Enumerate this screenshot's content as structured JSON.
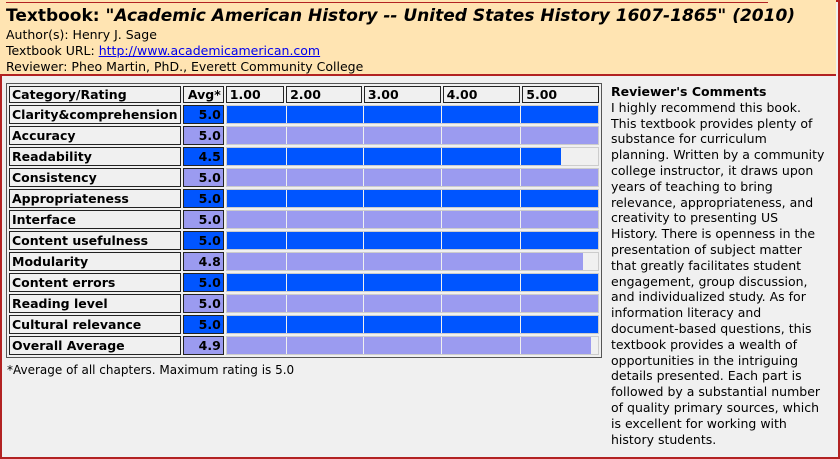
{
  "header": {
    "title_prefix": "Textbook: ",
    "title_book": "\"Academic American History -- United States History 1607-1865\" (2010)",
    "author_label": "Author(s): ",
    "author": "Henry J. Sage",
    "url_label": "Textbook URL: ",
    "url": "http://www.academicamerican.com",
    "reviewer_label": "Reviewer: ",
    "reviewer": "Pheo Martin, PhD., Everett Community College"
  },
  "table": {
    "col_category": "Category/Rating",
    "col_avg": "Avg*",
    "scale": [
      "1.00",
      "2.00",
      "3.00",
      "4.00",
      "5.00"
    ],
    "max": 5.0,
    "colors": {
      "dark": "#0055ff",
      "light": "#9b9bf0"
    },
    "rows": [
      {
        "label": "Clarity&comprehension",
        "avg": "5.0",
        "value": 5.0,
        "shade": "dark"
      },
      {
        "label": "Accuracy",
        "avg": "5.0",
        "value": 5.0,
        "shade": "light"
      },
      {
        "label": "Readability",
        "avg": "4.5",
        "value": 4.5,
        "shade": "dark"
      },
      {
        "label": "Consistency",
        "avg": "5.0",
        "value": 5.0,
        "shade": "light"
      },
      {
        "label": "Appropriateness",
        "avg": "5.0",
        "value": 5.0,
        "shade": "dark"
      },
      {
        "label": "Interface",
        "avg": "5.0",
        "value": 5.0,
        "shade": "light"
      },
      {
        "label": "Content usefulness",
        "avg": "5.0",
        "value": 5.0,
        "shade": "dark"
      },
      {
        "label": "Modularity",
        "avg": "4.8",
        "value": 4.8,
        "shade": "light"
      },
      {
        "label": "Content errors",
        "avg": "5.0",
        "value": 5.0,
        "shade": "dark"
      },
      {
        "label": "Reading level",
        "avg": "5.0",
        "value": 5.0,
        "shade": "light"
      },
      {
        "label": "Cultural relevance",
        "avg": "5.0",
        "value": 5.0,
        "shade": "dark"
      },
      {
        "label": "Overall Average",
        "avg": "4.9",
        "value": 4.9,
        "shade": "light"
      }
    ]
  },
  "footnote": "*Average of all chapters.  Maximum rating is 5.0",
  "comments": {
    "heading": "Reviewer's Comments",
    "lines": [
      "I highly recommend this book.",
      "This textbook provides plenty of",
      "substance for curriculum",
      "planning. Written by a community",
      "college instructor, it draws upon",
      "years of teaching to bring",
      "relevance, appropriateness, and",
      "creativity to presenting US",
      "History. There is openness in the",
      "presentation of subject matter",
      "that greatly facilitates student",
      "engagement, group discussion,",
      "and individualized study. As for",
      "information literacy and",
      "document-based questions, this",
      "textbook provides a wealth of",
      "opportunities in the intriguing",
      "details presented. Each part is",
      "followed by a substantial number",
      "of quality primary sources, which",
      "is excellent for working with",
      "history students."
    ]
  }
}
